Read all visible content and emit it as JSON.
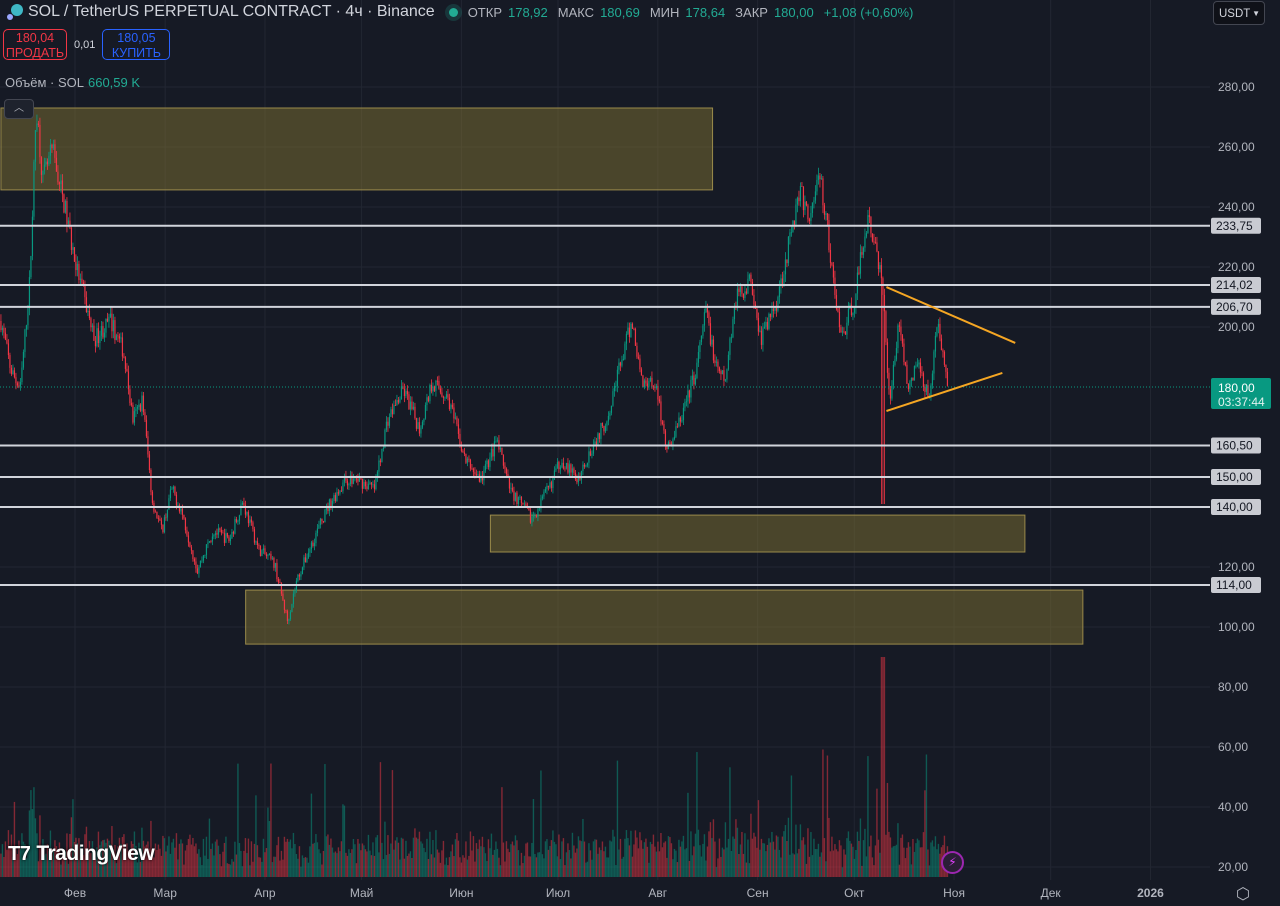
{
  "header": {
    "title": "SOL / TetherUS PERPETUAL CONTRACT · 4ч · Binance",
    "symbol_icon": "solana-logo-icon",
    "status_dot_color": "#22ab94",
    "ohlc": [
      {
        "label": "ОТКР",
        "value": "178,92"
      },
      {
        "label": "МАКС",
        "value": "180,69"
      },
      {
        "label": "МИН",
        "value": "178,64"
      },
      {
        "label": "ЗАКР",
        "value": "180,00"
      }
    ],
    "change": "+1,08 (+0,60%)"
  },
  "trade": {
    "sell_price": "180,04",
    "sell_label": "ПРОДАТЬ",
    "spread": "0,01",
    "buy_price": "180,05",
    "buy_label": "КУПИТЬ"
  },
  "volume_legend": {
    "label": "Объём · SOL",
    "value": "660,59 K"
  },
  "currency_select": {
    "value": "USDT"
  },
  "logo": "TradingView",
  "chart_data": {
    "type": "candlestick",
    "interval": "4h",
    "grid": true,
    "colors": {
      "up": "#089981",
      "down": "#f23645",
      "zone": "#8a7a32",
      "trendline": "#f5a623",
      "level": "#d1d4dc",
      "last_price": "#089981"
    },
    "y_ticks": [
      "280,00",
      "260,00",
      "240,00",
      "220,00",
      "200,00",
      "120,00",
      "100,00",
      "80,00",
      "60,00",
      "40,00",
      "20,00"
    ],
    "y_tick_values": [
      280,
      260,
      240,
      220,
      200,
      120,
      100,
      80,
      60,
      40,
      20
    ],
    "x_ticks": [
      {
        "label": "Фев",
        "date": "2025-02-01"
      },
      {
        "label": "Мар",
        "date": "2025-03-01"
      },
      {
        "label": "Апр",
        "date": "2025-04-01"
      },
      {
        "label": "Май",
        "date": "2025-05-01"
      },
      {
        "label": "Июн",
        "date": "2025-06-01"
      },
      {
        "label": "Июл",
        "date": "2025-07-01"
      },
      {
        "label": "Авг",
        "date": "2025-08-01"
      },
      {
        "label": "Сен",
        "date": "2025-09-01"
      },
      {
        "label": "Окт",
        "date": "2025-10-01"
      },
      {
        "label": "Ноя",
        "date": "2025-11-01"
      },
      {
        "label": "Дек",
        "date": "2025-12-01"
      },
      {
        "label": "2026",
        "date": "2026-01-01"
      }
    ],
    "price_path": [
      [
        "2025-01-09",
        202
      ],
      [
        "2025-01-12",
        186
      ],
      [
        "2025-01-15",
        179
      ],
      [
        "2025-01-18",
        216
      ],
      [
        "2025-01-20",
        274
      ],
      [
        "2025-01-22",
        249
      ],
      [
        "2025-01-25",
        259
      ],
      [
        "2025-01-29",
        239
      ],
      [
        "2025-02-01",
        222
      ],
      [
        "2025-02-04",
        209
      ],
      [
        "2025-02-07",
        196
      ],
      [
        "2025-02-12",
        202
      ],
      [
        "2025-02-16",
        192
      ],
      [
        "2025-02-19",
        169
      ],
      [
        "2025-02-22",
        176
      ],
      [
        "2025-02-25",
        142
      ],
      [
        "2025-02-28",
        132
      ],
      [
        "2025-03-03",
        146
      ],
      [
        "2025-03-06",
        139
      ],
      [
        "2025-03-11",
        119
      ],
      [
        "2025-03-16",
        132
      ],
      [
        "2025-03-21",
        129
      ],
      [
        "2025-03-25",
        142
      ],
      [
        "2025-03-30",
        126
      ],
      [
        "2025-04-04",
        121
      ],
      [
        "2025-04-08",
        102
      ],
      [
        "2025-04-11",
        116
      ],
      [
        "2025-04-16",
        129
      ],
      [
        "2025-04-21",
        141
      ],
      [
        "2025-04-26",
        149
      ],
      [
        "2025-04-30",
        149
      ],
      [
        "2025-05-05",
        146
      ],
      [
        "2025-05-09",
        169
      ],
      [
        "2025-05-14",
        179
      ],
      [
        "2025-05-19",
        166
      ],
      [
        "2025-05-23",
        182
      ],
      [
        "2025-05-28",
        176
      ],
      [
        "2025-06-02",
        156
      ],
      [
        "2025-06-07",
        149
      ],
      [
        "2025-06-12",
        162
      ],
      [
        "2025-06-16",
        146
      ],
      [
        "2025-06-23",
        136
      ],
      [
        "2025-06-28",
        146
      ],
      [
        "2025-07-02",
        156
      ],
      [
        "2025-07-07",
        149
      ],
      [
        "2025-07-11",
        159
      ],
      [
        "2025-07-16",
        169
      ],
      [
        "2025-07-19",
        182
      ],
      [
        "2025-07-24",
        202
      ],
      [
        "2025-07-27",
        182
      ],
      [
        "2025-07-31",
        182
      ],
      [
        "2025-08-04",
        159
      ],
      [
        "2025-08-08",
        169
      ],
      [
        "2025-08-13",
        186
      ],
      [
        "2025-08-16",
        206
      ],
      [
        "2025-08-19",
        186
      ],
      [
        "2025-08-22",
        182
      ],
      [
        "2025-08-25",
        209
      ],
      [
        "2025-08-30",
        216
      ],
      [
        "2025-09-02",
        196
      ],
      [
        "2025-09-07",
        209
      ],
      [
        "2025-09-11",
        229
      ],
      [
        "2025-09-14",
        246
      ],
      [
        "2025-09-17",
        236
      ],
      [
        "2025-09-20",
        251
      ],
      [
        "2025-09-22",
        239
      ],
      [
        "2025-09-24",
        219
      ],
      [
        "2025-09-27",
        196
      ],
      [
        "2025-10-01",
        209
      ],
      [
        "2025-10-05",
        236
      ],
      [
        "2025-10-08",
        226
      ],
      [
        "2025-10-10",
        209
      ],
      [
        "2025-10-12",
        176
      ],
      [
        "2025-10-15",
        202
      ],
      [
        "2025-10-18",
        179
      ],
      [
        "2025-10-21",
        189
      ],
      [
        "2025-10-24",
        176
      ],
      [
        "2025-10-27",
        202
      ],
      [
        "2025-10-30",
        180
      ]
    ],
    "wick_events": [
      {
        "date": "2025-10-10",
        "low": 141
      }
    ],
    "last_price": {
      "value": "180,00",
      "countdown": "03:37:44"
    },
    "levels": [
      {
        "value": 233.75,
        "label": "233,75"
      },
      {
        "value": 214.02,
        "label": "214,02"
      },
      {
        "value": 206.7,
        "label": "206,70"
      },
      {
        "value": 160.5,
        "label": "160,50"
      },
      {
        "value": 150.0,
        "label": "150,00"
      },
      {
        "value": 140.0,
        "label": "140,00"
      },
      {
        "value": 114.0,
        "label": "114,00"
      }
    ],
    "zones": [
      {
        "from": "2025-01-09",
        "to": "2025-08-18",
        "top": 273,
        "bottom": 245.7
      },
      {
        "from": "2025-06-10",
        "to": "2025-11-23",
        "top": 137.3,
        "bottom": 125
      },
      {
        "from": "2025-03-26",
        "to": "2025-12-11",
        "top": 112.3,
        "bottom": 94.3
      }
    ],
    "trendlines": [
      {
        "from": [
          "2025-10-11",
          213.3
        ],
        "to": [
          "2025-11-20",
          194.7
        ]
      },
      {
        "from": [
          "2025-10-11",
          172
        ],
        "to": [
          "2025-11-16",
          184.7
        ]
      }
    ]
  }
}
